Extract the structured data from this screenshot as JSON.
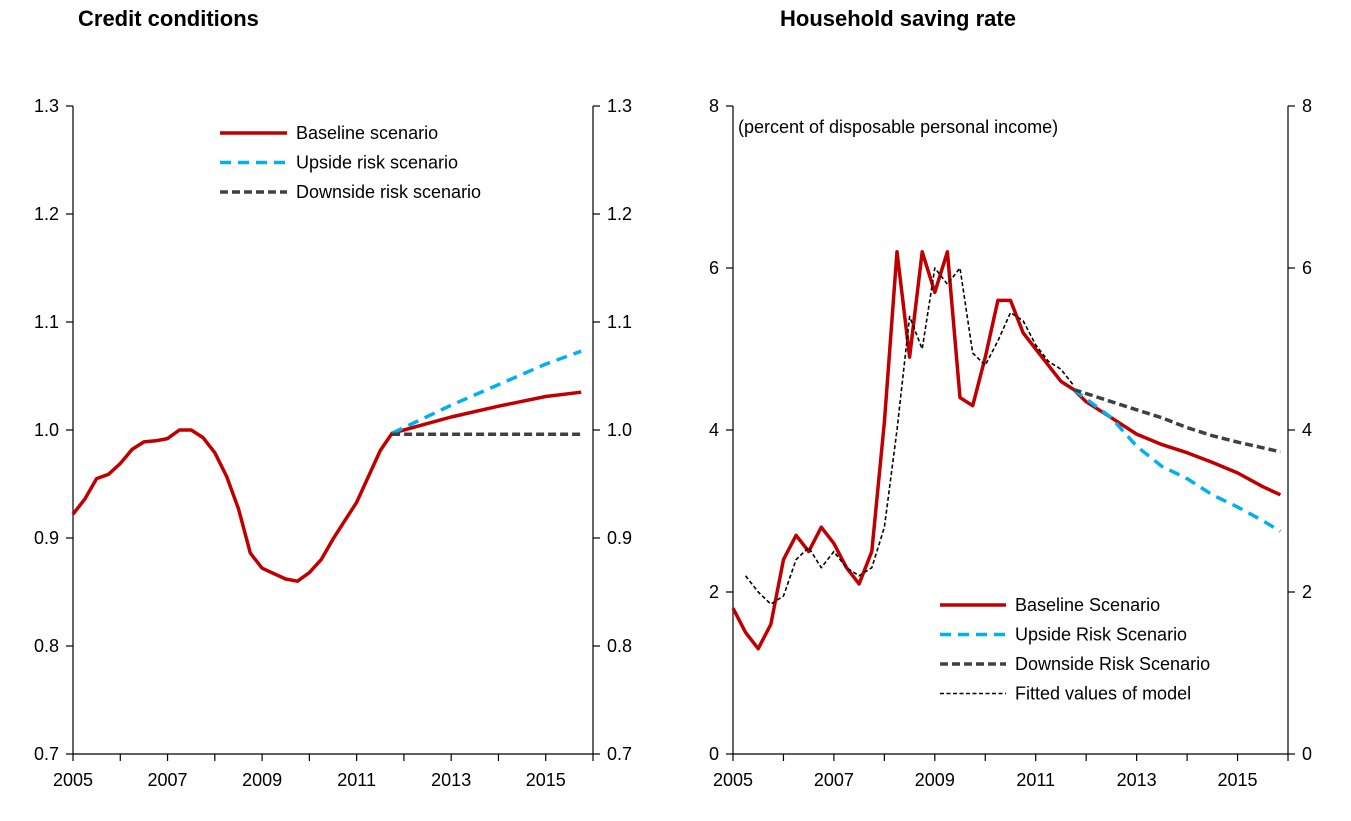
{
  "colors": {
    "baseline": "#c00000",
    "upside": "#00b0f0",
    "downside": "#404040",
    "fitted": "#000000"
  },
  "chart_data": [
    {
      "type": "line",
      "title": "Credit conditions",
      "ylim": [
        0.7,
        1.3
      ],
      "yticks": [
        "0.7",
        "0.8",
        "0.9",
        "1.0",
        "1.1",
        "1.2",
        "1.3"
      ],
      "xlim": [
        2005,
        2016
      ],
      "xticks": [
        "2005",
        "2007",
        "2009",
        "2011",
        "2013",
        "2015"
      ],
      "legend_position": "top-center",
      "series": [
        {
          "name": "Baseline scenario",
          "style": "baseline",
          "x": [
            2005.0,
            2005.25,
            2005.5,
            2005.75,
            2006.0,
            2006.25,
            2006.5,
            2006.75,
            2007.0,
            2007.25,
            2007.5,
            2007.75,
            2008.0,
            2008.25,
            2008.5,
            2008.75,
            2009.0,
            2009.25,
            2009.5,
            2009.75,
            2010.0,
            2010.25,
            2010.5,
            2010.75,
            2011.0,
            2011.25,
            2011.5,
            2011.75,
            2012.0,
            2013.0,
            2014.0,
            2015.0,
            2015.75
          ],
          "values": [
            0.922,
            0.936,
            0.955,
            0.959,
            0.969,
            0.982,
            0.989,
            0.99,
            0.992,
            1.0,
            1.0,
            0.993,
            0.979,
            0.957,
            0.927,
            0.886,
            0.872,
            0.867,
            0.862,
            0.86,
            0.868,
            0.88,
            0.899,
            0.916,
            0.933,
            0.957,
            0.981,
            0.997,
            1.0,
            1.012,
            1.022,
            1.031,
            1.035
          ]
        },
        {
          "name": "Upside risk scenario",
          "style": "upside",
          "x": [
            2011.75,
            2013.0,
            2014.0,
            2015.0,
            2015.75
          ],
          "values": [
            0.997,
            1.023,
            1.042,
            1.061,
            1.073
          ]
        },
        {
          "name": "Downside risk scenario",
          "style": "downside",
          "x": [
            2011.75,
            2015.75
          ],
          "values": [
            0.996,
            0.996
          ]
        }
      ]
    },
    {
      "type": "line",
      "title": "Household saving rate",
      "annotation": "(percent of disposable personal income)",
      "ylim": [
        0,
        8
      ],
      "yticks": [
        "0",
        "2",
        "4",
        "6",
        "8"
      ],
      "xlim": [
        2005,
        2016
      ],
      "xticks": [
        "2005",
        "2007",
        "2009",
        "2011",
        "2013",
        "2015"
      ],
      "legend_position": "bottom-right",
      "series": [
        {
          "name": "Baseline Scenario",
          "style": "baseline",
          "x": [
            2005.0,
            2005.25,
            2005.5,
            2005.75,
            2006.0,
            2006.25,
            2006.5,
            2006.75,
            2007.0,
            2007.25,
            2007.5,
            2007.75,
            2008.0,
            2008.25,
            2008.5,
            2008.75,
            2009.0,
            2009.25,
            2009.5,
            2009.75,
            2010.0,
            2010.25,
            2010.5,
            2010.75,
            2011.0,
            2011.25,
            2011.5,
            2011.75,
            2012.0,
            2012.5,
            2013.0,
            2013.5,
            2014.0,
            2014.5,
            2015.0,
            2015.5,
            2015.85
          ],
          "values": [
            1.8,
            1.5,
            1.3,
            1.6,
            2.4,
            2.7,
            2.5,
            2.8,
            2.6,
            2.3,
            2.1,
            2.5,
            4.1,
            6.2,
            4.9,
            6.2,
            5.7,
            6.2,
            4.4,
            4.3,
            4.9,
            5.6,
            5.6,
            5.2,
            5.0,
            4.8,
            4.6,
            4.5,
            4.35,
            4.15,
            3.95,
            3.82,
            3.72,
            3.6,
            3.47,
            3.3,
            3.2
          ]
        },
        {
          "name": "Upside Risk Scenario",
          "style": "upside",
          "x": [
            2011.75,
            2012.5,
            2013.0,
            2013.5,
            2014.0,
            2014.5,
            2015.0,
            2015.5,
            2015.85
          ],
          "values": [
            4.5,
            4.15,
            3.8,
            3.55,
            3.4,
            3.2,
            3.05,
            2.88,
            2.75
          ]
        },
        {
          "name": "Downside Risk Scenario",
          "style": "downside",
          "x": [
            2011.75,
            2012.5,
            2013.0,
            2013.5,
            2014.0,
            2014.5,
            2015.0,
            2015.5,
            2015.85
          ],
          "values": [
            4.5,
            4.35,
            4.25,
            4.15,
            4.03,
            3.93,
            3.85,
            3.78,
            3.73
          ]
        },
        {
          "name": "Fitted values of model",
          "style": "fitted",
          "x": [
            2005.25,
            2005.5,
            2005.75,
            2006.0,
            2006.25,
            2006.5,
            2006.75,
            2007.0,
            2007.25,
            2007.5,
            2007.75,
            2008.0,
            2008.25,
            2008.5,
            2008.75,
            2009.0,
            2009.25,
            2009.5,
            2009.75,
            2010.0,
            2010.25,
            2010.5,
            2010.75,
            2011.0,
            2011.25,
            2011.5,
            2011.75
          ],
          "values": [
            2.2,
            2.0,
            1.85,
            1.95,
            2.4,
            2.55,
            2.3,
            2.5,
            2.3,
            2.2,
            2.3,
            2.8,
            4.0,
            5.4,
            5.0,
            6.0,
            5.8,
            6.0,
            4.95,
            4.8,
            5.1,
            5.45,
            5.35,
            5.05,
            4.85,
            4.75,
            4.55
          ]
        }
      ]
    }
  ]
}
